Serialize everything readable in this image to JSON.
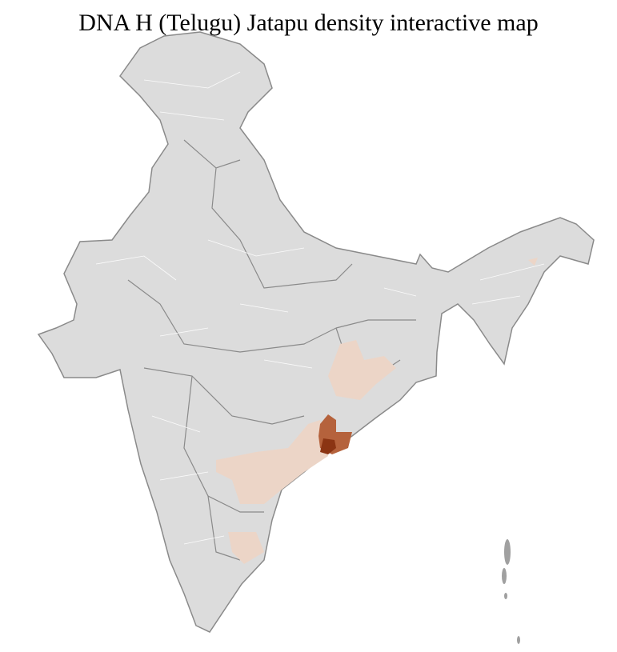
{
  "title": "DNA H (Telugu) Jatapu density interactive map",
  "colors": {
    "base": "#dcdcdc",
    "border": "#8a8a8a",
    "district_line": "#ffffff",
    "low": "#ecd5c7",
    "mid": "#b5623c",
    "high": "#8b3413"
  }
}
